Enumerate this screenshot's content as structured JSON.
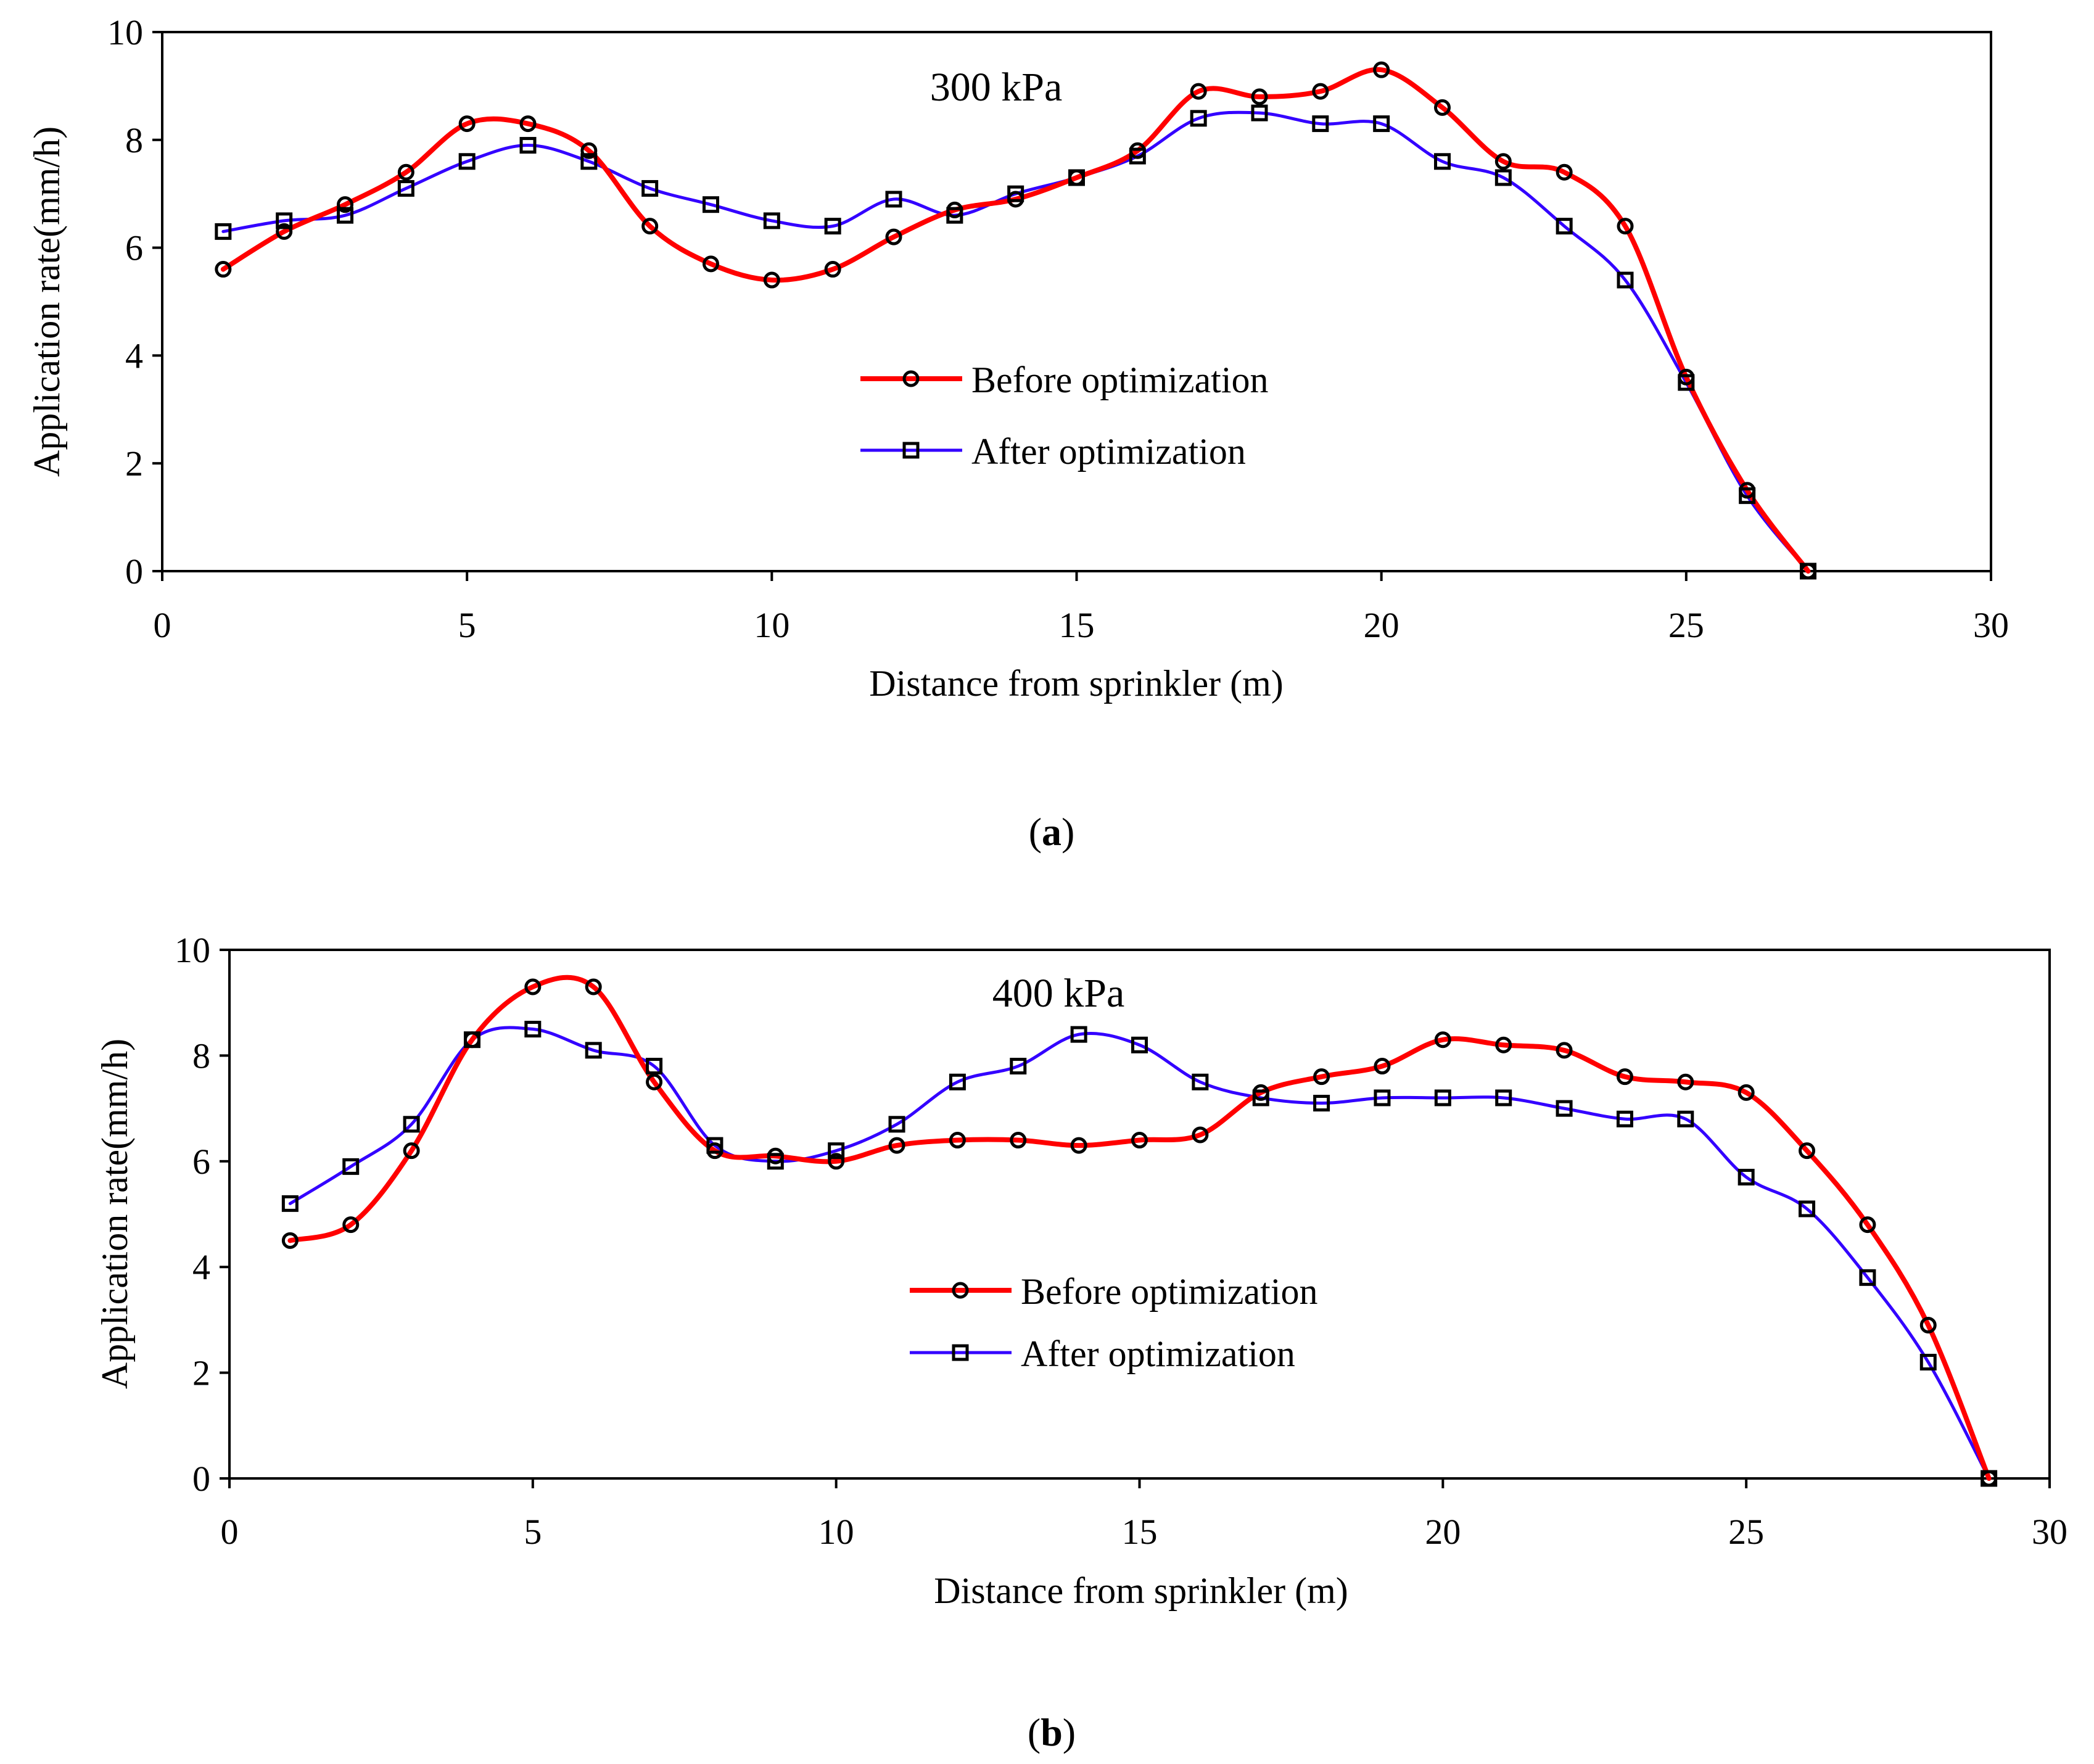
{
  "chart_data": [
    {
      "type": "line",
      "panel_label": "a",
      "annotation": "300 kPa",
      "xlabel": "Distance from sprinkler (m)",
      "ylabel": "Application rate(mm/h)",
      "xlim": [
        0,
        30
      ],
      "ylim": [
        0,
        10
      ],
      "xticks": [
        0,
        5,
        10,
        15,
        20,
        25,
        30
      ],
      "yticks": [
        0,
        2,
        4,
        6,
        8,
        10
      ],
      "legend_position": "center",
      "x": [
        1,
        2,
        3,
        4,
        5,
        6,
        7,
        8,
        9,
        10,
        11,
        12,
        13,
        14,
        15,
        16,
        17,
        18,
        19,
        20,
        21,
        22,
        23,
        24,
        25,
        26,
        27
      ],
      "series": [
        {
          "name": "Before optimization",
          "color": "#ff0000",
          "marker": "circle",
          "values": [
            5.6,
            6.3,
            6.8,
            7.4,
            8.3,
            8.3,
            7.8,
            6.4,
            5.7,
            5.4,
            5.6,
            6.2,
            6.7,
            6.9,
            7.3,
            7.8,
            8.9,
            8.8,
            8.9,
            9.3,
            8.6,
            7.6,
            7.4,
            6.4,
            3.6,
            1.5,
            0.0
          ]
        },
        {
          "name": "After optimization",
          "color": "#3300ff",
          "marker": "square",
          "values": [
            6.3,
            6.5,
            6.6,
            7.1,
            7.6,
            7.9,
            7.6,
            7.1,
            6.8,
            6.5,
            6.4,
            6.9,
            6.6,
            7.0,
            7.3,
            7.7,
            8.4,
            8.5,
            8.3,
            8.3,
            7.6,
            7.3,
            6.4,
            5.4,
            3.5,
            1.4,
            0.0
          ]
        }
      ]
    },
    {
      "type": "line",
      "panel_label": "b",
      "annotation": "400 kPa",
      "xlabel": "Distance from sprinkler (m)",
      "ylabel": "Application rate(mm/h)",
      "xlim": [
        0,
        30
      ],
      "ylim": [
        0,
        10
      ],
      "xticks": [
        0,
        5,
        10,
        15,
        20,
        25,
        30
      ],
      "yticks": [
        0,
        2,
        4,
        6,
        8,
        10
      ],
      "legend_position": "center",
      "x": [
        1,
        2,
        3,
        4,
        5,
        6,
        7,
        8,
        9,
        10,
        11,
        12,
        13,
        14,
        15,
        16,
        17,
        18,
        19,
        20,
        21,
        22,
        23,
        24,
        25,
        26,
        27,
        28,
        29
      ],
      "series": [
        {
          "name": "Before optimization",
          "color": "#ff0000",
          "marker": "circle",
          "values": [
            4.5,
            4.8,
            6.2,
            8.3,
            9.3,
            9.3,
            7.5,
            6.2,
            6.1,
            6.0,
            6.3,
            6.4,
            6.4,
            6.3,
            6.4,
            6.5,
            7.3,
            7.6,
            7.8,
            8.3,
            8.2,
            8.1,
            7.6,
            7.5,
            7.3,
            6.2,
            4.8,
            2.9,
            0.0
          ]
        },
        {
          "name": "After optimization",
          "color": "#3300ff",
          "marker": "square",
          "values": [
            5.2,
            5.9,
            6.7,
            8.3,
            8.5,
            8.1,
            7.8,
            6.3,
            6.0,
            6.2,
            6.7,
            7.5,
            7.8,
            8.4,
            8.2,
            7.5,
            7.2,
            7.1,
            7.2,
            7.2,
            7.2,
            7.0,
            6.8,
            6.8,
            5.7,
            5.1,
            3.8,
            2.2,
            0.0
          ]
        }
      ]
    }
  ]
}
